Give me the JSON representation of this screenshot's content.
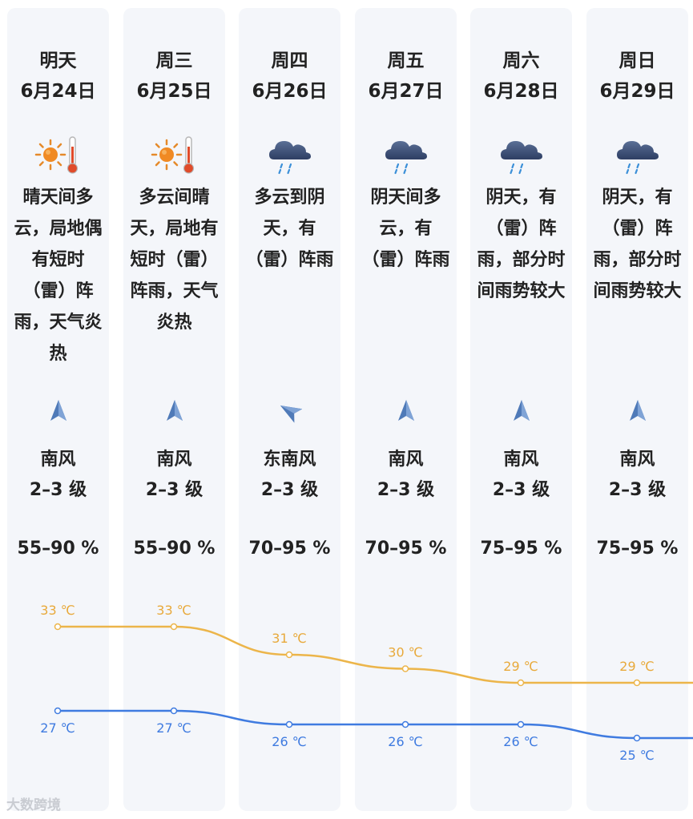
{
  "days": [
    {
      "day": "明天",
      "date": "6月24日",
      "icon": "sun-thermometer-icon",
      "desc": "晴天间多云，局地偶有短时（雷）阵雨，天气炎热",
      "wind_dir": "南风",
      "wind_level": "2–3 级",
      "wind_arrow": "north",
      "humidity": "55–90 %",
      "high": "33 ℃",
      "low": "27 ℃",
      "high_val": 33,
      "low_val": 27
    },
    {
      "day": "周三",
      "date": "6月25日",
      "icon": "sun-thermometer-icon",
      "desc": "多云间晴天，局地有短时（雷）阵雨，天气炎热",
      "wind_dir": "南风",
      "wind_level": "2–3 级",
      "wind_arrow": "north",
      "humidity": "55–90 %",
      "high": "33 ℃",
      "low": "27 ℃",
      "high_val": 33,
      "low_val": 27
    },
    {
      "day": "周四",
      "date": "6月26日",
      "icon": "rain-cloud-icon",
      "desc": "多云到阴天，有（雷）阵雨",
      "wind_dir": "东南风",
      "wind_level": "2–3 级",
      "wind_arrow": "northwest",
      "humidity": "70–95 %",
      "high": "31 ℃",
      "low": "26 ℃",
      "high_val": 31,
      "low_val": 26
    },
    {
      "day": "周五",
      "date": "6月27日",
      "icon": "rain-cloud-icon",
      "desc": "阴天间多云，有（雷）阵雨",
      "wind_dir": "南风",
      "wind_level": "2–3 级",
      "wind_arrow": "north",
      "humidity": "70–95 %",
      "high": "30 ℃",
      "low": "26 ℃",
      "high_val": 30,
      "low_val": 26
    },
    {
      "day": "周六",
      "date": "6月28日",
      "icon": "rain-cloud-icon",
      "desc": "阴天，有（雷）阵雨，部分时间雨势较大",
      "wind_dir": "南风",
      "wind_level": "2–3 级",
      "wind_arrow": "north",
      "humidity": "75–95 %",
      "high": "29 ℃",
      "low": "26 ℃",
      "high_val": 29,
      "low_val": 26
    },
    {
      "day": "周日",
      "date": "6月29日",
      "icon": "rain-cloud-icon",
      "desc": "阴天，有（雷）阵雨，部分时间雨势较大",
      "wind_dir": "南风",
      "wind_level": "2–3 级",
      "wind_arrow": "north",
      "humidity": "75–95 %",
      "high": "29 ℃",
      "low": "25 ℃",
      "high_val": 29,
      "low_val": 25
    }
  ],
  "colors": {
    "high": "#ecb54a",
    "low": "#3f7be0",
    "high_text": "#e8a93a",
    "low_text": "#3f7be0",
    "arrow": "#4f7ab8"
  },
  "watermark": "大数跨境"
}
